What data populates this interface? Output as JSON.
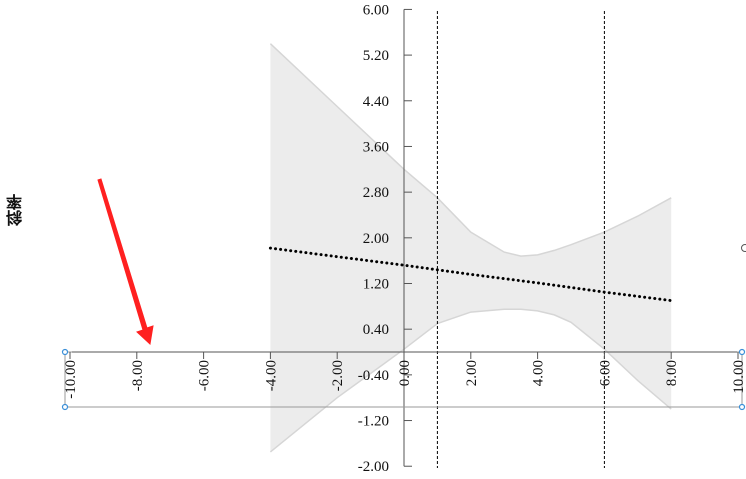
{
  "chart_data": {
    "type": "line",
    "ylabel": "斜率",
    "xlabel": "",
    "title": "",
    "xlim": [
      -10,
      10
    ],
    "ylim": [
      -2,
      6
    ],
    "x_ticks": [
      "-10.00",
      "-8.00",
      "-6.00",
      "-4.00",
      "-2.00",
      "0.00",
      "2.00",
      "4.00",
      "6.00",
      "8.00",
      "10.00"
    ],
    "y_ticks": [
      "-2.00",
      "-1.20",
      "-0.40",
      "0.40",
      "1.20",
      "2.00",
      "2.80",
      "3.60",
      "4.40",
      "5.20",
      "6.00"
    ],
    "series": [
      {
        "style": "dotted",
        "x": [
          -4,
          -2,
          0,
          2,
          4,
          6,
          8
        ],
        "y": [
          1.82,
          1.67,
          1.52,
          1.36,
          1.21,
          1.05,
          0.9
        ]
      }
    ],
    "confidence_band": {
      "x": [
        -4,
        -2,
        0,
        1,
        2,
        3,
        3.5,
        4,
        4.5,
        5,
        6,
        7,
        8
      ],
      "upper": [
        5.4,
        4.3,
        3.2,
        2.7,
        2.1,
        1.75,
        1.68,
        1.7,
        1.78,
        1.88,
        2.1,
        2.38,
        2.7
      ],
      "lower": [
        -1.75,
        -0.8,
        0.05,
        0.5,
        0.7,
        0.75,
        0.75,
        0.72,
        0.65,
        0.52,
        0.05,
        -0.5,
        -1.0
      ]
    },
    "reference_lines_x": [
      1,
      6
    ],
    "colors": {
      "band": "#ececec",
      "band_edge": "#d6d6d6",
      "line": "#000000",
      "axis": "#555555",
      "arrow": "#ff2020",
      "handle": "#3a8fd8"
    }
  }
}
